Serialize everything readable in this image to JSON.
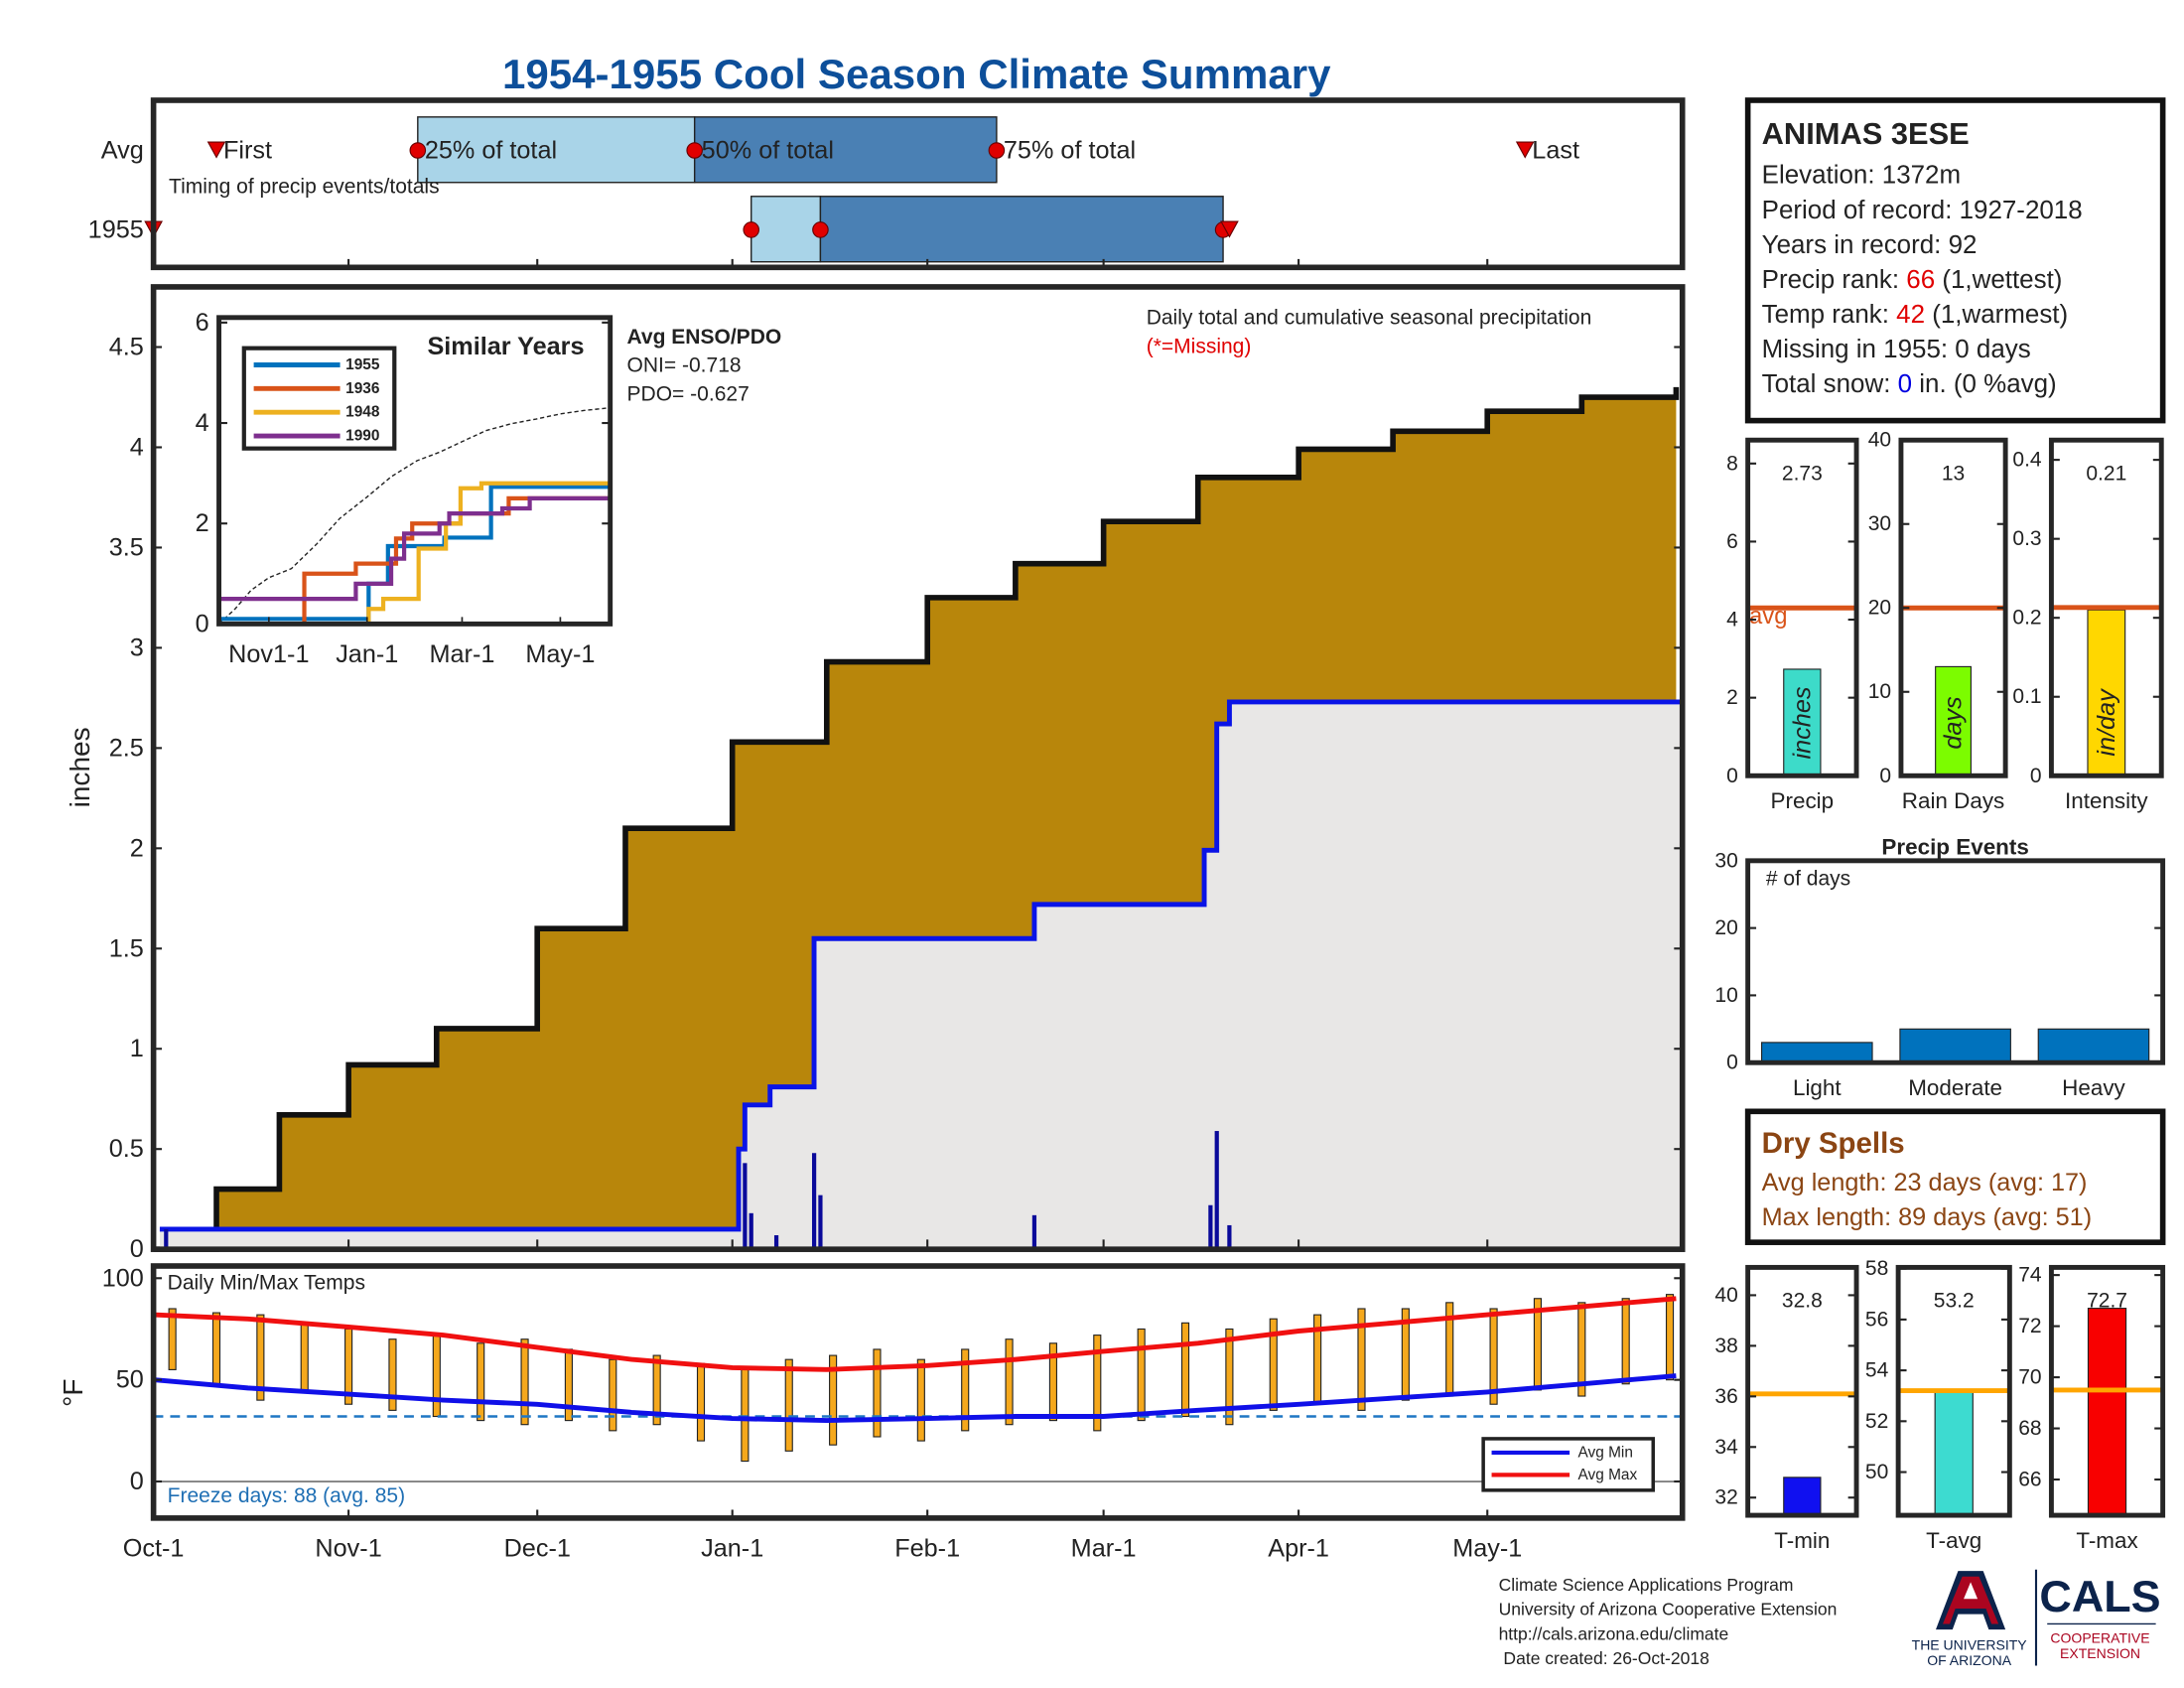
{
  "title": "1954-1955 Cool Season Climate Summary",
  "chart_data": [
    {
      "type": "timing",
      "subtitle": "Timing of precip events/totals",
      "markers": [
        "First",
        "25% of total",
        "50% of total",
        "75% of total",
        "Last"
      ],
      "rows": [
        {
          "name": "Avg",
          "values": [
            10,
            42,
            86,
            134,
            218
          ]
        },
        {
          "name": "1955",
          "values": [
            0,
            95,
            106,
            170,
            171
          ]
        }
      ],
      "colors": [
        "#a9d4e8",
        "#4a80b4",
        "#e00000"
      ],
      "xlim": [
        0,
        243
      ]
    },
    {
      "type": "area",
      "ylabel": "inches",
      "annotations": [
        "Daily total and cumulative seasonal precipitation",
        "(*=Missing)"
      ],
      "xlim": [
        0,
        243
      ],
      "xticks": [
        {
          "value": 0,
          "label": "Oct-1"
        },
        {
          "value": 31,
          "label": "Nov-1"
        },
        {
          "value": 61,
          "label": "Dec-1"
        },
        {
          "value": 92,
          "label": "Jan-1"
        },
        {
          "value": 123,
          "label": "Feb-1"
        },
        {
          "value": 151,
          "label": "Mar-1"
        },
        {
          "value": 182,
          "label": "Apr-1"
        },
        {
          "value": 212,
          "label": "May-1"
        }
      ],
      "ylim": [
        0,
        4.8
      ],
      "yticks": [
        0,
        0.5,
        1,
        1.5,
        2,
        2.5,
        3,
        3.5,
        4,
        4.5
      ],
      "series": [
        {
          "kind": "area",
          "color": "#b8860b",
          "x": [
            0,
            10,
            20,
            31,
            45,
            61,
            75,
            92,
            107,
            123,
            137,
            151,
            166,
            182,
            197,
            212,
            227,
            242
          ],
          "values": [
            0,
            0.3,
            0.67,
            0.92,
            1.1,
            1.6,
            2.1,
            2.53,
            2.93,
            3.25,
            3.42,
            3.63,
            3.85,
            3.99,
            4.08,
            4.18,
            4.25,
            4.3
          ]
        },
        {
          "kind": "step",
          "color": "#0a14e6",
          "fill": "#e8e7e6",
          "x": [
            1,
            93,
            94,
            98,
            105,
            140,
            167,
            169,
            171,
            243
          ],
          "values": [
            0.1,
            0.5,
            0.72,
            0.81,
            1.55,
            1.72,
            1.99,
            2.62,
            2.73,
            2.73
          ]
        },
        {
          "kind": "bars",
          "color": "#0a0a9a",
          "x": [
            2,
            94,
            95,
            99,
            105,
            106,
            140,
            168,
            169,
            171
          ],
          "values": [
            0.1,
            0.43,
            0.18,
            0.07,
            0.48,
            0.27,
            0.17,
            0.22,
            0.59,
            0.12
          ]
        }
      ]
    },
    {
      "type": "line",
      "title": "Similar Years",
      "step": true,
      "annotations": [
        "Avg ENSO/PDO",
        "ONI= -0.718",
        "PDO= -0.627"
      ],
      "xlim": [
        0,
        243
      ],
      "xticks": [
        {
          "value": 31,
          "label": "Nov1-1"
        },
        {
          "value": 92,
          "label": "Jan-1"
        },
        {
          "value": 151,
          "label": "Mar-1"
        },
        {
          "value": 212,
          "label": "May-1"
        }
      ],
      "ylim": [
        0,
        6.1
      ],
      "yticks": [
        0,
        2,
        4,
        6
      ],
      "series": [
        {
          "name": "1955",
          "color": "#0072bd",
          "x": [
            0,
            93,
            105,
            140,
            169,
            243
          ],
          "values": [
            0.1,
            0.8,
            1.55,
            1.72,
            2.73,
            2.73
          ]
        },
        {
          "name": "1936",
          "color": "#d95319",
          "x": [
            0,
            53,
            85,
            110,
            120,
            150,
            180,
            243
          ],
          "values": [
            0,
            1.0,
            1.2,
            1.7,
            2.0,
            2.2,
            2.5,
            2.5
          ]
        },
        {
          "name": "1948",
          "color": "#edb120",
          "x": [
            0,
            93,
            102,
            124,
            141,
            150,
            163,
            243
          ],
          "values": [
            0,
            0.3,
            0.5,
            1.5,
            2.0,
            2.7,
            2.8,
            2.8
          ]
        },
        {
          "name": "1990",
          "color": "#7e2f8e",
          "x": [
            0,
            85,
            107,
            115,
            137,
            143,
            176,
            193,
            243
          ],
          "values": [
            0.5,
            0.8,
            1.3,
            1.8,
            2.0,
            2.2,
            2.3,
            2.5,
            2.6
          ]
        }
      ]
    },
    {
      "type": "range",
      "ylabel": "°F",
      "annotations": [
        "Daily Min/Max Temps",
        "Freeze days: 88 (avg. 85)"
      ],
      "xlim": [
        0,
        243
      ],
      "ylim": [
        -18,
        106
      ],
      "yticks": [
        0,
        50,
        100
      ],
      "freeze_line": 32,
      "bars": {
        "color": "#f5a81c",
        "x": [
          3,
          10,
          17,
          24,
          31,
          38,
          45,
          52,
          59,
          66,
          73,
          80,
          87,
          94,
          101,
          108,
          115,
          122,
          129,
          136,
          143,
          150,
          157,
          164,
          171,
          178,
          185,
          192,
          199,
          206,
          213,
          220,
          227,
          234,
          241
        ],
        "low": [
          55,
          48,
          40,
          45,
          38,
          35,
          32,
          30,
          28,
          30,
          25,
          28,
          20,
          10,
          15,
          18,
          22,
          20,
          25,
          28,
          30,
          25,
          30,
          32,
          28,
          35,
          38,
          35,
          40,
          42,
          38,
          45,
          42,
          48,
          50
        ],
        "high": [
          85,
          83,
          82,
          78,
          75,
          70,
          72,
          68,
          70,
          65,
          60,
          62,
          58,
          55,
          60,
          62,
          65,
          60,
          65,
          70,
          68,
          72,
          75,
          78,
          75,
          80,
          82,
          85,
          85,
          88,
          85,
          90,
          88,
          90,
          92
        ]
      },
      "series": [
        {
          "name": "Avg Min",
          "color": "#1010e8",
          "x": [
            0,
            15,
            31,
            46,
            61,
            76,
            92,
            107,
            123,
            137,
            151,
            166,
            182,
            197,
            212,
            227,
            242
          ],
          "values": [
            50,
            46,
            43,
            40,
            38,
            34,
            31,
            30,
            31,
            32,
            32,
            35,
            38,
            41,
            44,
            48,
            52
          ]
        },
        {
          "name": "Avg Max",
          "color": "#f01010",
          "x": [
            0,
            15,
            31,
            46,
            61,
            76,
            92,
            107,
            123,
            137,
            151,
            166,
            182,
            197,
            212,
            227,
            242
          ],
          "values": [
            82,
            80,
            76,
            72,
            66,
            60,
            56,
            55,
            57,
            60,
            64,
            68,
            74,
            78,
            82,
            86,
            90
          ]
        }
      ]
    },
    {
      "type": "bar",
      "categories": [
        "Precip"
      ],
      "values": [
        2.73
      ],
      "data_labels": true,
      "color": "#3ddbc9",
      "avg": 4.3,
      "avg_color": "#d95319",
      "avg_label": "avg",
      "unit": "inches",
      "ylim": [
        0,
        8.6
      ],
      "yticks": [
        0,
        2,
        4,
        6,
        8
      ]
    },
    {
      "type": "bar",
      "categories": [
        "Rain Days"
      ],
      "values": [
        13
      ],
      "data_labels": true,
      "color": "#7cfc00",
      "avg": 20,
      "avg_color": "#d95319",
      "unit": "days",
      "ylim": [
        0,
        40
      ],
      "yticks": [
        0,
        10,
        20,
        30,
        40
      ]
    },
    {
      "type": "bar",
      "categories": [
        "Intensity"
      ],
      "values": [
        0.21
      ],
      "data_labels": true,
      "color": "#ffd700",
      "avg": 0.213,
      "avg_color": "#d95319",
      "unit": "in/day",
      "ylim": [
        0,
        0.425
      ],
      "yticks": [
        0,
        0.1,
        0.2,
        0.3,
        0.4
      ]
    },
    {
      "type": "bar",
      "title": "Precip Events",
      "note": "# of days",
      "categories": [
        "Light",
        "Moderate",
        "Heavy"
      ],
      "values": [
        3,
        5,
        5
      ],
      "color": "#0072bd",
      "ylim": [
        0,
        30
      ],
      "yticks": [
        0,
        10,
        20,
        30
      ]
    },
    {
      "type": "bar",
      "categories": [
        "T-min"
      ],
      "values": [
        32.8
      ],
      "data_labels": true,
      "color": "#1010f0",
      "avg": 36.1,
      "avg_color": "#ffa500",
      "ylim": [
        31.3,
        41.1
      ],
      "yticks": [
        32,
        34,
        36,
        38,
        40
      ]
    },
    {
      "type": "bar",
      "categories": [
        "T-avg"
      ],
      "values": [
        53.2
      ],
      "data_labels": true,
      "color": "#3ddbd0",
      "avg": 53.2,
      "avg_color": "#ffa500",
      "ylim": [
        48.3,
        58.05
      ],
      "yticks": [
        50,
        52,
        54,
        56,
        58
      ]
    },
    {
      "type": "bar",
      "categories": [
        "T-max"
      ],
      "values": [
        72.7
      ],
      "data_labels": true,
      "color": "#f80000",
      "avg": 69.5,
      "avg_color": "#ffa500",
      "ylim": [
        64.6,
        74.3
      ],
      "yticks": [
        66,
        68,
        70,
        72,
        74
      ]
    }
  ],
  "station": {
    "name": "ANIMAS 3ESE",
    "lines": [
      {
        "parts": [
          "Elevation: 1372m"
        ]
      },
      {
        "parts": [
          "Period of record: 1927-2018"
        ]
      },
      {
        "parts": [
          "Years in record: 92"
        ]
      },
      {
        "parts": [
          "Precip rank: ",
          "66",
          " (1,wettest)"
        ],
        "color": "#e00000"
      },
      {
        "parts": [
          "Temp rank: ",
          "42",
          " (1,warmest)"
        ],
        "color": "#e00000"
      },
      {
        "parts": [
          "Missing in 1955: 0 days"
        ]
      },
      {
        "parts": [
          "Total snow: ",
          "0",
          " in. (0 %avg)"
        ],
        "color": "#0000e0"
      }
    ]
  },
  "dry_spells": {
    "title": "Dry Spells",
    "lines": [
      "Avg length: 23 days (avg: 17)",
      "Max length: 89 days (avg: 51)"
    ]
  },
  "footer": [
    "Climate Science Applications Program",
    "University of Arizona Cooperative Extension",
    "http://cals.arizona.edu/climate",
    " Date created: 26-Oct-2018"
  ],
  "logos": {
    "university": [
      "THE UNIVERSITY",
      "OF ARIZONA"
    ],
    "cals": "CALS",
    "cals_sub": [
      "COOPERATIVE",
      "EXTENSION"
    ]
  }
}
